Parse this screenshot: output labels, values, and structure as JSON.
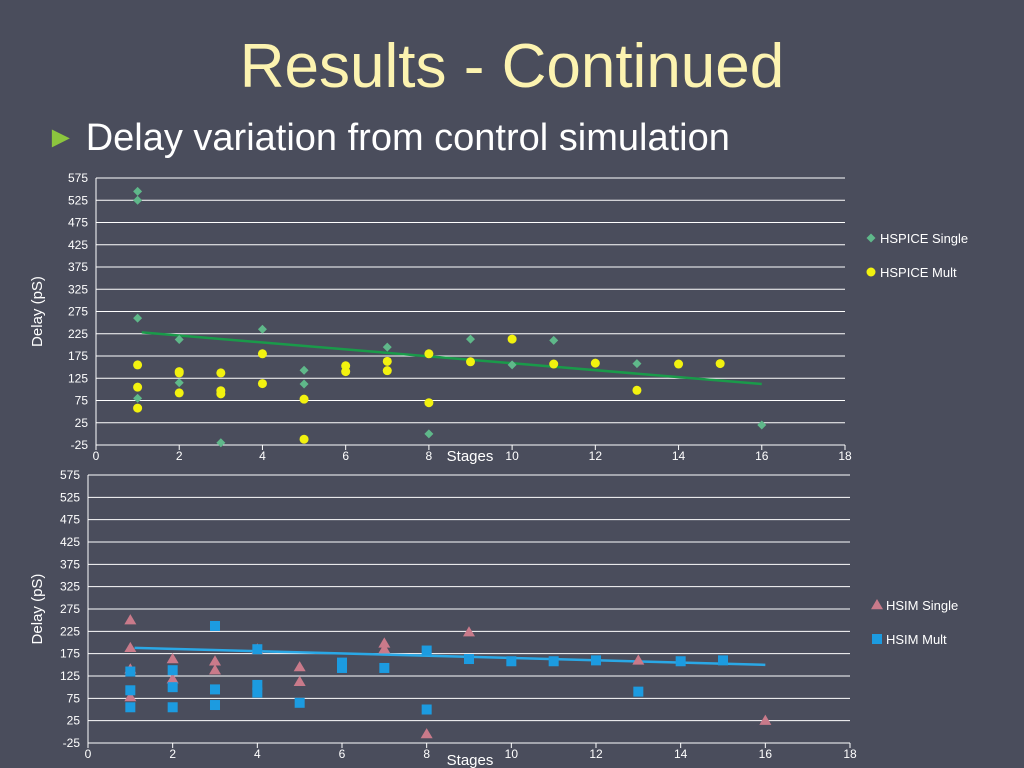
{
  "slide": {
    "title": "Results - Continued",
    "bullet": "Delay variation from control simulation",
    "bullet_icon": "triangle-right-icon",
    "background_color": "#4a4d5c",
    "title_color": "#fcf3b0",
    "bullet_color": "#8cc63e"
  },
  "chart_data": [
    {
      "type": "scatter",
      "xlabel": "Stages",
      "ylabel": "Delay (pS)",
      "xlim": [
        0,
        18
      ],
      "ylim": [
        -25,
        575
      ],
      "x_ticks": [
        "0",
        "2",
        "4",
        "6",
        "8",
        "10",
        "12",
        "14",
        "16",
        "18"
      ],
      "y_ticks": [
        "575",
        "525",
        "475",
        "425",
        "375",
        "325",
        "275",
        "225",
        "175",
        "125",
        "75",
        "25",
        "-25"
      ],
      "grid": true,
      "legend_position": "right",
      "series": [
        {
          "name": "HSPICE Single",
          "marker": "diamond",
          "color": "#5fb88a",
          "points": [
            [
              1,
              545
            ],
            [
              1,
              525
            ],
            [
              1,
              260
            ],
            [
              1,
              80
            ],
            [
              2,
              212
            ],
            [
              2,
              115
            ],
            [
              3,
              -20
            ],
            [
              4,
              235
            ],
            [
              4,
              180
            ],
            [
              5,
              143
            ],
            [
              5,
              112
            ],
            [
              6,
              150
            ],
            [
              7,
              195
            ],
            [
              8,
              180
            ],
            [
              8,
              0
            ],
            [
              9,
              213
            ],
            [
              10,
              155
            ],
            [
              11,
              210
            ],
            [
              13,
              158
            ],
            [
              16,
              20
            ]
          ]
        },
        {
          "name": "HSPICE Mult",
          "marker": "circle",
          "color": "#f2f20f",
          "points": [
            [
              1,
              155
            ],
            [
              1,
              105
            ],
            [
              1,
              58
            ],
            [
              2,
              140
            ],
            [
              2,
              137
            ],
            [
              2,
              92
            ],
            [
              3,
              137
            ],
            [
              3,
              97
            ],
            [
              3,
              90
            ],
            [
              4,
              180
            ],
            [
              4,
              113
            ],
            [
              5,
              78
            ],
            [
              5,
              -12
            ],
            [
              6,
              153
            ],
            [
              6,
              140
            ],
            [
              7,
              163
            ],
            [
              7,
              142
            ],
            [
              8,
              180
            ],
            [
              8,
              70
            ],
            [
              9,
              162
            ],
            [
              10,
              213
            ],
            [
              11,
              157
            ],
            [
              12,
              159
            ],
            [
              13,
              98
            ],
            [
              14,
              157
            ],
            [
              15,
              158
            ]
          ]
        }
      ],
      "trendline": {
        "color": "#1a9a4a",
        "from": [
          1.1,
          228
        ],
        "to": [
          16,
          112
        ]
      }
    },
    {
      "type": "scatter",
      "xlabel": "Stages",
      "ylabel": "Delay (pS)",
      "xlim": [
        0,
        18
      ],
      "ylim": [
        -25,
        575
      ],
      "x_ticks": [
        "0",
        "2",
        "4",
        "6",
        "8",
        "10",
        "12",
        "14",
        "16",
        "18"
      ],
      "y_ticks": [
        "575",
        "525",
        "475",
        "425",
        "375",
        "325",
        "275",
        "225",
        "175",
        "125",
        "75",
        "25",
        "-25"
      ],
      "grid": true,
      "legend_position": "right",
      "series": [
        {
          "name": "HSIM Single",
          "marker": "triangle",
          "color": "#c97a8a",
          "points": [
            [
              1,
              250
            ],
            [
              1,
              188
            ],
            [
              1,
              140
            ],
            [
              1,
              78
            ],
            [
              2,
              163
            ],
            [
              2,
              118
            ],
            [
              3,
              158
            ],
            [
              3,
              138
            ],
            [
              4,
              185
            ],
            [
              5,
              145
            ],
            [
              5,
              112
            ],
            [
              7,
              198
            ],
            [
              7,
              185
            ],
            [
              8,
              -5
            ],
            [
              9,
              223
            ],
            [
              13,
              160
            ],
            [
              16,
              25
            ]
          ]
        },
        {
          "name": "HSIM Mult",
          "marker": "square",
          "color": "#1c9be0",
          "points": [
            [
              1,
              135
            ],
            [
              1,
              93
            ],
            [
              1,
              55
            ],
            [
              2,
              138
            ],
            [
              2,
              100
            ],
            [
              2,
              55
            ],
            [
              3,
              237
            ],
            [
              3,
              95
            ],
            [
              3,
              60
            ],
            [
              4,
              185
            ],
            [
              4,
              105
            ],
            [
              4,
              88
            ],
            [
              5,
              65
            ],
            [
              6,
              155
            ],
            [
              6,
              143
            ],
            [
              7,
              143
            ],
            [
              8,
              182
            ],
            [
              8,
              50
            ],
            [
              9,
              163
            ],
            [
              10,
              158
            ],
            [
              11,
              158
            ],
            [
              12,
              160
            ],
            [
              13,
              90
            ],
            [
              14,
              158
            ],
            [
              15,
              160
            ]
          ]
        }
      ],
      "trendline": {
        "color": "#2aa8e6",
        "from": [
          1.1,
          188
        ],
        "to": [
          16,
          150
        ]
      }
    }
  ]
}
